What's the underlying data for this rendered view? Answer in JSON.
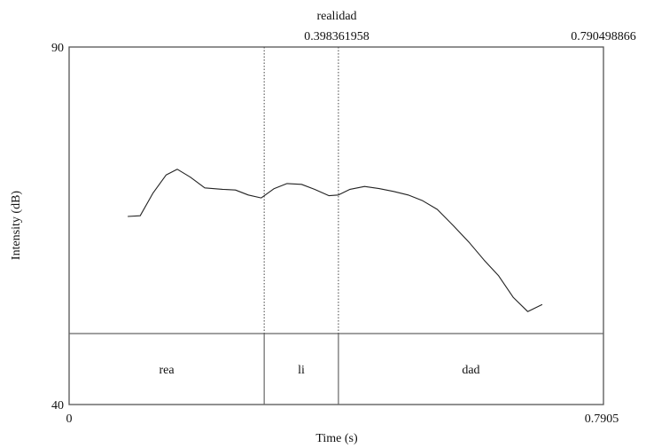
{
  "chart_data": {
    "type": "line",
    "title": "realidad",
    "xlabel": "Time (s)",
    "ylabel": "Intensity (dB)",
    "xlim": [
      0,
      0.7905
    ],
    "ylim": [
      40,
      90
    ],
    "x_tick_labels": {
      "left": "0",
      "right": "0.7905"
    },
    "y_tick_labels": {
      "top": "90",
      "bottom": "40"
    },
    "top_marker_labels": [
      "0.398361958",
      "0.790498866"
    ],
    "boundaries": [
      0.2886,
      0.3984
    ],
    "series": [
      {
        "x": [
          0.0867,
          0.1052,
          0.1243,
          0.1434,
          0.1601,
          0.1793,
          0.2007,
          0.2269,
          0.246,
          0.2651,
          0.2842,
          0.3033,
          0.3224,
          0.3439,
          0.363,
          0.3845,
          0.3984,
          0.4156,
          0.4371,
          0.4586,
          0.4801,
          0.5016,
          0.5231,
          0.5446,
          0.5685,
          0.5924,
          0.6139,
          0.6354,
          0.6569,
          0.6784,
          0.6999
        ],
        "y": [
          66.3,
          66.4,
          69.6,
          72.1,
          72.9,
          71.8,
          70.3,
          70.1,
          70.0,
          69.3,
          68.9,
          70.2,
          70.9,
          70.8,
          70.1,
          69.2,
          69.3,
          70.1,
          70.5,
          70.2,
          69.8,
          69.3,
          68.5,
          67.3,
          65.0,
          62.6,
          60.2,
          58.0,
          55.0,
          53.0,
          54.0
        ]
      }
    ],
    "segments": [
      {
        "label": "rea",
        "start": 0,
        "end": 0.2886
      },
      {
        "label": "li",
        "start": 0.2886,
        "end": 0.3984
      },
      {
        "label": "dad",
        "start": 0.3984,
        "end": 0.7905
      }
    ]
  }
}
